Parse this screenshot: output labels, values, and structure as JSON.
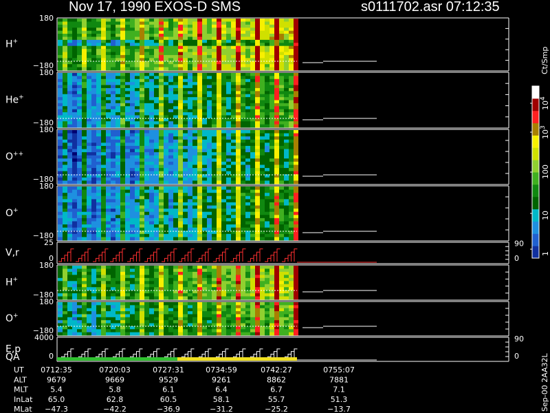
{
  "header": {
    "title": "Nov 17, 1990    EXOS-D SMS",
    "file": "s0111702.asr  07:12:35"
  },
  "panels": [
    {
      "label": "H",
      "sup": "+",
      "top": "180",
      "bottom": "−180"
    },
    {
      "label": "He",
      "sup": "+",
      "top": "180",
      "bottom": "−180"
    },
    {
      "label": "O",
      "sup": "++",
      "top": "180",
      "bottom": "−180"
    },
    {
      "label": "O",
      "sup": "+",
      "top": "180",
      "bottom": "−180"
    },
    {
      "label": "V,r",
      "sup": "",
      "top": "25",
      "bottom": "0",
      "rtop": "90",
      "rbottom": "0"
    },
    {
      "label": "H",
      "sup": "+",
      "top": "180",
      "bottom": "−180"
    },
    {
      "label": "O",
      "sup": "+",
      "top": "180",
      "bottom": "−180"
    },
    {
      "label": "E,p",
      "sup": "",
      "top": "4000",
      "bottom": "0",
      "rtop": "90",
      "rbottom": "0",
      "extra": "QA"
    }
  ],
  "colorbar": {
    "unit": "Ct/Smp",
    "ticks": [
      {
        "base": "10",
        "exp": "4"
      },
      {
        "base": "10",
        "exp": "3"
      },
      {
        "base": "100",
        "exp": ""
      },
      {
        "base": "10",
        "exp": ""
      },
      {
        "base": "1",
        "exp": ""
      }
    ]
  },
  "footer": {
    "rows": [
      {
        "label": "UT",
        "values": [
          "0712:35",
          "0720:03",
          "0727:31",
          "0734:59",
          "0742:27",
          "0755:07"
        ]
      },
      {
        "label": "ALT",
        "values": [
          "9679",
          "9669",
          "9529",
          "9261",
          "8862",
          "7881"
        ]
      },
      {
        "label": "MLT",
        "values": [
          "5.4",
          "5.8",
          "6.1",
          "6.4",
          "6.7",
          "7.1"
        ]
      },
      {
        "label": "InLat",
        "values": [
          "65.0",
          "62.8",
          "60.5",
          "58.1",
          "55.7",
          "51.3"
        ]
      },
      {
        "label": "MLat",
        "values": [
          "−47.3",
          "−42.2",
          "−36.9",
          "−31.2",
          "−25.2",
          "−13.7"
        ]
      }
    ]
  },
  "stamp": "Sep-00  2AA32L"
}
